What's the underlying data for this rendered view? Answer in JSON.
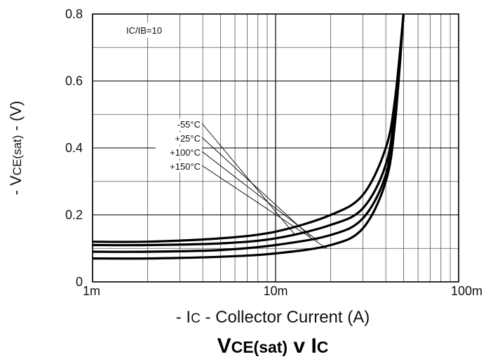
{
  "chart_data": {
    "type": "line",
    "title_main": "VCE(sat) v IC",
    "title_parts": [
      "V",
      "CE(sat)",
      " v I",
      "C"
    ],
    "xlabel_parts": [
      "- I",
      "C",
      " - Collector Current (A)"
    ],
    "ylabel_parts": [
      "- V",
      "CE(sat)",
      " - (V)"
    ],
    "condition": "IC/IB=10",
    "x_scale": "log",
    "xlim": [
      0.001,
      0.1
    ],
    "ylim": [
      0,
      0.8
    ],
    "x_ticks": [
      {
        "value": 0.001,
        "label": "1m"
      },
      {
        "value": 0.01,
        "label": "10m"
      },
      {
        "value": 0.1,
        "label": "100m"
      }
    ],
    "y_ticks": [
      {
        "value": 0,
        "label": "0"
      },
      {
        "value": 0.2,
        "label": "0.2"
      },
      {
        "value": 0.4,
        "label": "0.4"
      },
      {
        "value": 0.6,
        "label": "0.6"
      },
      {
        "value": 0.8,
        "label": "0.8"
      }
    ],
    "grid": true,
    "series": [
      {
        "name": "-55°C",
        "x": [
          0.001,
          0.002,
          0.005,
          0.01,
          0.02,
          0.03,
          0.04,
          0.045,
          0.05
        ],
        "y": [
          0.12,
          0.12,
          0.13,
          0.15,
          0.2,
          0.26,
          0.4,
          0.55,
          0.8
        ],
        "label_at": {
          "x": 0.0128,
          "y": 0.14
        }
      },
      {
        "name": "+25°C",
        "x": [
          0.001,
          0.002,
          0.005,
          0.01,
          0.02,
          0.03,
          0.04,
          0.045,
          0.05
        ],
        "y": [
          0.11,
          0.11,
          0.115,
          0.13,
          0.17,
          0.22,
          0.35,
          0.52,
          0.8
        ],
        "label_at": {
          "x": 0.0155,
          "y": 0.135
        }
      },
      {
        "name": "+100°C",
        "x": [
          0.001,
          0.002,
          0.005,
          0.01,
          0.02,
          0.03,
          0.04,
          0.045,
          0.05
        ],
        "y": [
          0.09,
          0.09,
          0.095,
          0.11,
          0.14,
          0.19,
          0.32,
          0.5,
          0.8
        ],
        "label_at": {
          "x": 0.017,
          "y": 0.123
        }
      },
      {
        "name": "+150°C",
        "x": [
          0.001,
          0.002,
          0.005,
          0.01,
          0.02,
          0.03,
          0.04,
          0.045,
          0.05
        ],
        "y": [
          0.07,
          0.07,
          0.075,
          0.085,
          0.11,
          0.16,
          0.3,
          0.48,
          0.8
        ],
        "label_at": {
          "x": 0.019,
          "y": 0.1
        }
      }
    ]
  }
}
